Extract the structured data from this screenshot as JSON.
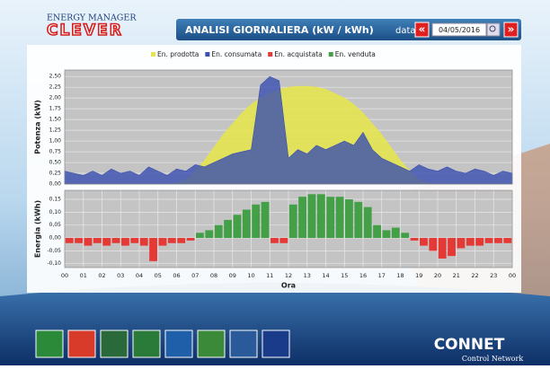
{
  "header": {
    "brand_top": "ENERGY MANAGER",
    "brand": "CLEVER",
    "title": "ANALISI GIORNALIERA (kW / kWh)",
    "date_label": "data",
    "date": "04/05/2016",
    "prev": "«",
    "next": "»"
  },
  "chart_data": [
    {
      "type": "area",
      "ylabel": "Potenza (kW)",
      "x": [
        0,
        0.5,
        1,
        1.5,
        2,
        2.5,
        3,
        3.5,
        4,
        4.5,
        5,
        5.5,
        6,
        6.5,
        7,
        7.5,
        8,
        8.5,
        9,
        9.5,
        10,
        10.5,
        11,
        11.5,
        12,
        12.5,
        13,
        13.5,
        14,
        14.5,
        15,
        15.5,
        16,
        16.5,
        17,
        17.5,
        18,
        18.5,
        19,
        19.5,
        20,
        20.5,
        21,
        21.5,
        22,
        22.5,
        23,
        23.5,
        24
      ],
      "series": [
        {
          "name": "En. prodotta",
          "color": "#e6e64a",
          "values": [
            0,
            0,
            0,
            0,
            0,
            0,
            0,
            0,
            0,
            0,
            0,
            0,
            0.02,
            0.1,
            0.3,
            0.55,
            0.85,
            1.15,
            1.4,
            1.65,
            1.85,
            2.0,
            2.1,
            2.2,
            2.25,
            2.27,
            2.27,
            2.25,
            2.2,
            2.1,
            2.0,
            1.85,
            1.65,
            1.4,
            1.15,
            0.85,
            0.55,
            0.3,
            0.1,
            0.02,
            0,
            0,
            0,
            0,
            0,
            0,
            0,
            0,
            0
          ]
        },
        {
          "name": "En. consumata",
          "color": "#3a4fb0",
          "values": [
            0.3,
            0.25,
            0.2,
            0.3,
            0.2,
            0.35,
            0.25,
            0.3,
            0.2,
            0.4,
            0.3,
            0.2,
            0.35,
            0.3,
            0.45,
            0.4,
            0.5,
            0.6,
            0.7,
            0.75,
            0.8,
            2.3,
            2.5,
            2.4,
            0.6,
            0.8,
            0.7,
            0.9,
            0.8,
            0.9,
            1.0,
            0.9,
            1.2,
            0.8,
            0.6,
            0.5,
            0.4,
            0.3,
            0.45,
            0.35,
            0.3,
            0.4,
            0.3,
            0.25,
            0.35,
            0.3,
            0.2,
            0.3,
            0.25
          ]
        }
      ],
      "legend": [
        {
          "name": "En. prodotta",
          "color": "#e6e64a"
        },
        {
          "name": "En. consumata",
          "color": "#3a4fb0"
        },
        {
          "name": "En. acquistata",
          "color": "#e53935"
        },
        {
          "name": "En. venduta",
          "color": "#43a047"
        }
      ],
      "xlim": [
        0,
        24
      ],
      "ylim": [
        0,
        2.65
      ],
      "yticks": [
        {
          "value": 0,
          "label": "0,00"
        },
        {
          "value": 0.25,
          "label": "0,25"
        },
        {
          "value": 0.5,
          "label": "0,50"
        },
        {
          "value": 0.75,
          "label": "0,75"
        },
        {
          "value": 1,
          "label": "1,00"
        },
        {
          "value": 1.25,
          "label": "1,25"
        },
        {
          "value": 1.5,
          "label": "1,50"
        },
        {
          "value": 1.75,
          "label": "1,75"
        },
        {
          "value": 2,
          "label": "2,00"
        },
        {
          "value": 2.25,
          "label": "2,25"
        },
        {
          "value": 2.5,
          "label": "2,50"
        }
      ],
      "grid": true
    },
    {
      "type": "bar",
      "ylabel": "Energia (kWh)",
      "xlabel": "Ora",
      "x": [
        0.25,
        0.75,
        1.25,
        1.75,
        2.25,
        2.75,
        3.25,
        3.75,
        4.25,
        4.75,
        5.25,
        5.75,
        6.25,
        6.75,
        7.25,
        7.75,
        8.25,
        8.75,
        9.25,
        9.75,
        10.25,
        10.75,
        11.25,
        11.75,
        12.25,
        12.75,
        13.25,
        13.75,
        14.25,
        14.75,
        15.25,
        15.75,
        16.25,
        16.75,
        17.25,
        17.75,
        18.25,
        18.75,
        19.25,
        19.75,
        20.25,
        20.75,
        21.25,
        21.75,
        22.25,
        22.75,
        23.25,
        23.75
      ],
      "values": [
        -0.02,
        -0.02,
        -0.03,
        -0.02,
        -0.03,
        -0.02,
        -0.03,
        -0.02,
        -0.03,
        -0.09,
        -0.03,
        -0.02,
        -0.02,
        -0.01,
        0.02,
        0.03,
        0.05,
        0.07,
        0.09,
        0.11,
        0.13,
        0.14,
        -0.02,
        -0.02,
        0.13,
        0.16,
        0.17,
        0.17,
        0.16,
        0.16,
        0.15,
        0.14,
        0.12,
        0.05,
        0.03,
        0.04,
        0.02,
        -0.01,
        -0.03,
        -0.05,
        -0.08,
        -0.07,
        -0.04,
        -0.03,
        -0.03,
        -0.02,
        -0.02,
        -0.02
      ],
      "colors": {
        "positive": "#43a047",
        "negative": "#e53935"
      },
      "xlim": [
        0,
        24
      ],
      "ylim": [
        -0.115,
        0.185
      ],
      "yticks": [
        {
          "value": -0.1,
          "label": "-0,10"
        },
        {
          "value": -0.05,
          "label": "-0,05"
        },
        {
          "value": 0,
          "label": "0,00"
        },
        {
          "value": 0.05,
          "label": "0,05"
        },
        {
          "value": 0.1,
          "label": "0,10"
        },
        {
          "value": 0.15,
          "label": "0,15"
        }
      ],
      "xticks": [
        {
          "value": 0,
          "label": "00"
        },
        {
          "value": 1,
          "label": "01"
        },
        {
          "value": 2,
          "label": "02"
        },
        {
          "value": 3,
          "label": "03"
        },
        {
          "value": 4,
          "label": "04"
        },
        {
          "value": 5,
          "label": "05"
        },
        {
          "value": 6,
          "label": "06"
        },
        {
          "value": 7,
          "label": "07"
        },
        {
          "value": 8,
          "label": "08"
        },
        {
          "value": 9,
          "label": "09"
        },
        {
          "value": 10,
          "label": "10"
        },
        {
          "value": 11,
          "label": "11"
        },
        {
          "value": 12,
          "label": "12"
        },
        {
          "value": 13,
          "label": "13"
        },
        {
          "value": 14,
          "label": "14"
        },
        {
          "value": 15,
          "label": "15"
        },
        {
          "value": 16,
          "label": "16"
        },
        {
          "value": 17,
          "label": "17"
        },
        {
          "value": 18,
          "label": "18"
        },
        {
          "value": 19,
          "label": "19"
        },
        {
          "value": 20,
          "label": "20"
        },
        {
          "value": 21,
          "label": "21"
        },
        {
          "value": 22,
          "label": "22"
        },
        {
          "value": 23,
          "label": "23"
        },
        {
          "value": 24,
          "label": "00"
        }
      ],
      "grid": true
    }
  ],
  "footer": {
    "brand": "CONNET",
    "brand_sub": "Control Network"
  }
}
